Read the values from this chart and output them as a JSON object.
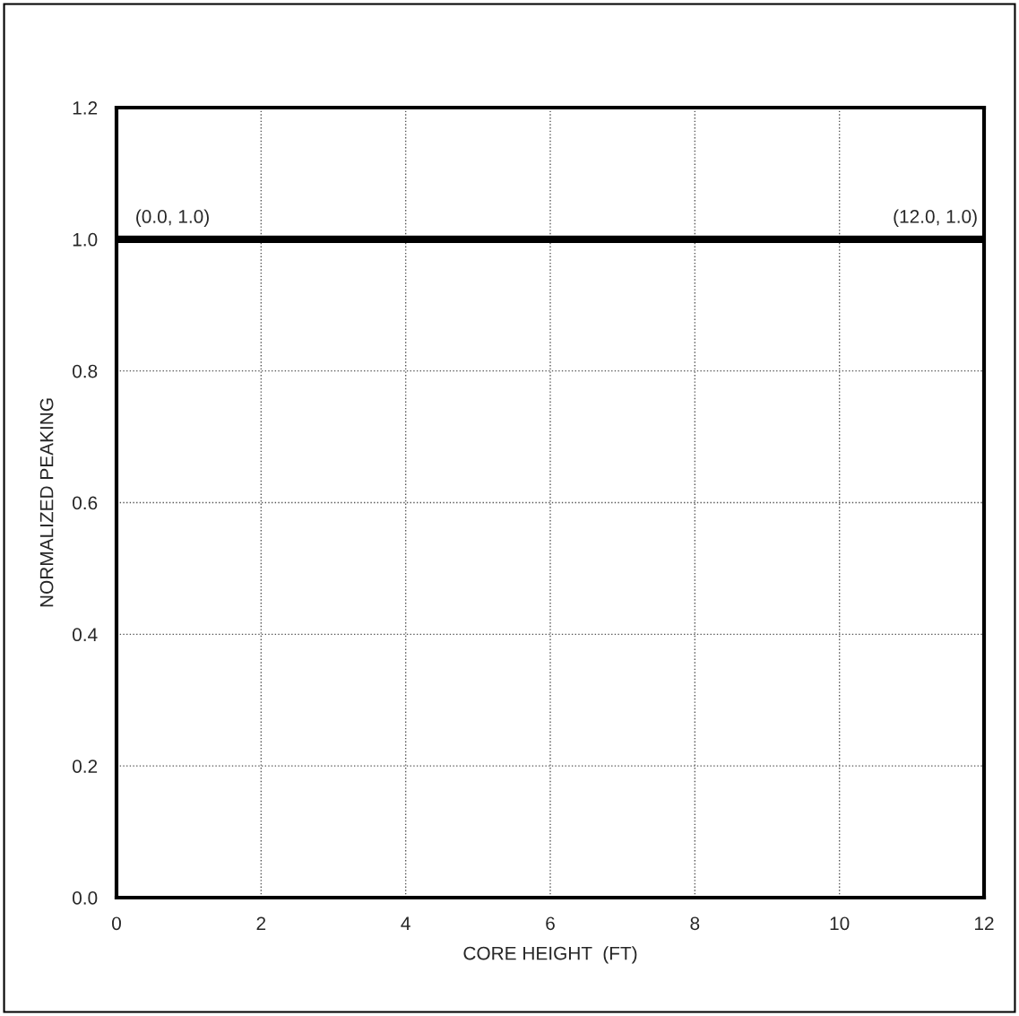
{
  "chart_data": {
    "type": "line",
    "xlabel": "CORE HEIGHT  (FT)",
    "ylabel": "NORMALIZED PEAKING",
    "x": [
      0,
      12
    ],
    "series": [
      {
        "color": "#000000",
        "values": [
          1.0,
          1.0
        ]
      }
    ],
    "xlim": [
      0,
      12
    ],
    "xticks": [
      0,
      2,
      4,
      6,
      8,
      10,
      12
    ],
    "ylim": [
      0,
      1.2
    ],
    "yticks": [
      {
        "value": 0,
        "label": "0.0"
      },
      {
        "value": 0.2,
        "label": "0.2"
      },
      {
        "value": 0.4,
        "label": "0.4"
      },
      {
        "value": 0.6,
        "label": "0.6"
      },
      {
        "value": 0.8,
        "label": "0.8"
      },
      {
        "value": 1.0,
        "label": "1.0"
      },
      {
        "value": 1.2,
        "label": "1.2"
      }
    ],
    "grid": true,
    "marker": "none",
    "line_style": "solid",
    "annotations": [
      {
        "text": "(0.0, 1.0)",
        "x": 0,
        "y": 1.0
      },
      {
        "text": "(12.0, 1.0)",
        "x": 12,
        "y": 1.0
      }
    ]
  }
}
